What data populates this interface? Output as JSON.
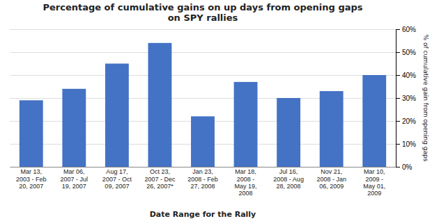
{
  "chart_data": {
    "type": "bar",
    "title": "Percentage of cumulative gains on up days from opening gaps\non SPY rallies",
    "x_label": "Date Range for the Rally",
    "y_label": "% of cumulative gain from opening gaps",
    "categories": [
      "Mar 13,\n2003 - Feb\n20, 2007",
      "Mar 06,\n2007 - Jul\n19, 2007",
      "Aug 17,\n2007 - Oct\n09, 2007",
      "Oct 23,\n2007 - Dec\n26, 2007*",
      "Jan 23,\n2008 - Feb\n27, 2008",
      "Mar 18,\n2008 -\nMay 19,\n2008",
      "Jul 16,\n2008 - Aug\n28, 2008",
      "Nov 21,\n2008 - Jan\n06, 2009",
      "Mar 10,\n2009 -\nMay 01,\n2009"
    ],
    "values": [
      0.29,
      0.34,
      0.45,
      0.54,
      0.22,
      0.37,
      0.3,
      0.33,
      0.4
    ],
    "color": "#4472C4",
    "ylim": [
      0,
      0.6
    ],
    "yticks": [
      {
        "value": 0.0,
        "label": "0%"
      },
      {
        "value": 0.1,
        "label": "10%"
      },
      {
        "value": 0.2,
        "label": "20%"
      },
      {
        "value": 0.3,
        "label": "30%"
      },
      {
        "value": 0.4,
        "label": "40%"
      },
      {
        "value": 0.5,
        "label": "50%"
      },
      {
        "value": 0.6,
        "label": "60%"
      }
    ],
    "grid": true
  }
}
